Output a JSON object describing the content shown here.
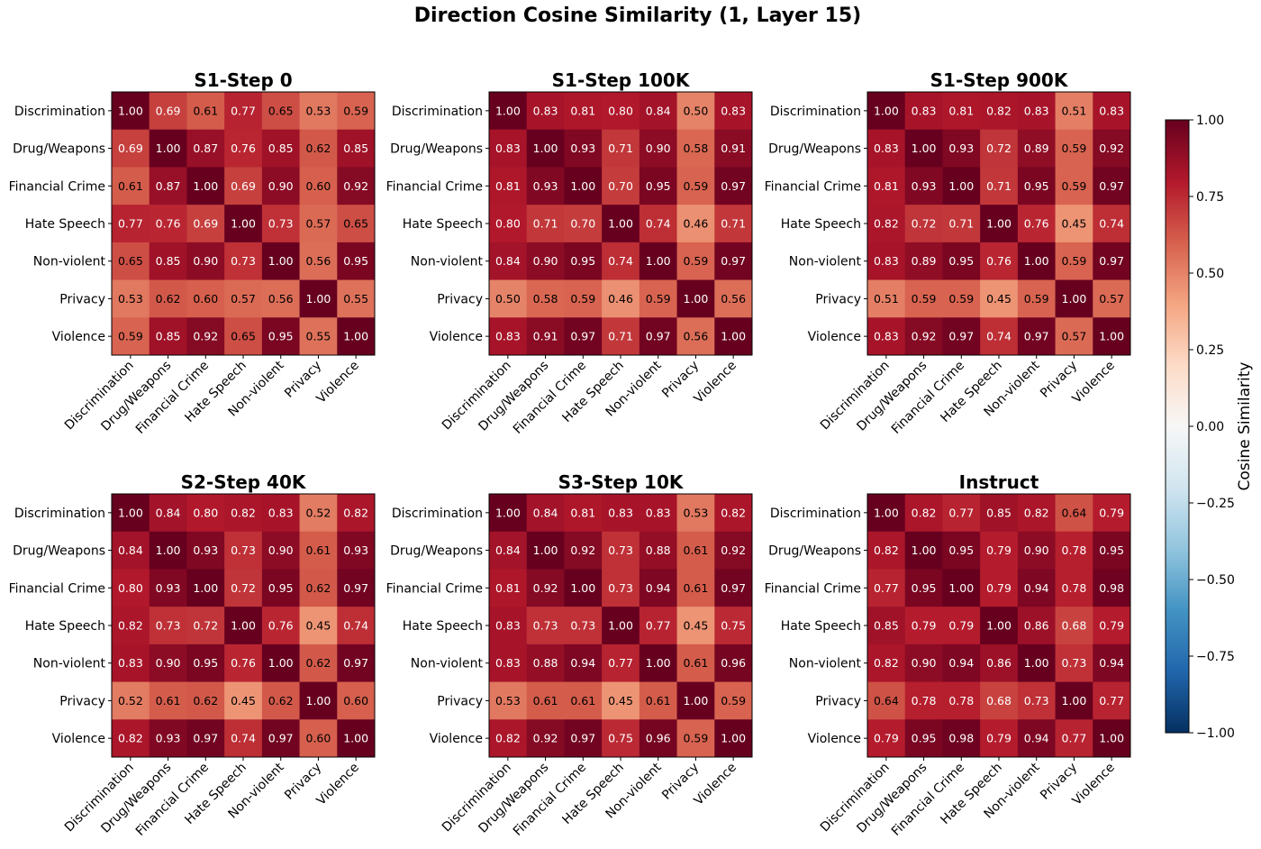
{
  "chart_data": {
    "type": "heatmap",
    "title": "Direction Cosine Similarity (1, Layer 15)",
    "categories": [
      "Discrimination",
      "Drug/Weapons",
      "Financial Crime",
      "Hate Speech",
      "Non-violent",
      "Privacy",
      "Violence"
    ],
    "vmin": -1.0,
    "vmax": 1.0,
    "colormap": "RdBu_r",
    "colorbar": {
      "label": "Cosine Similarity",
      "ticks": [
        "1.00",
        "0.75",
        "0.50",
        "0.25",
        "0.00",
        "−0.25",
        "−0.50",
        "−0.75",
        "−1.00"
      ]
    },
    "panels": [
      {
        "title": "S1-Step 0",
        "matrix": [
          [
            1.0,
            0.69,
            0.61,
            0.77,
            0.65,
            0.53,
            0.59
          ],
          [
            0.69,
            1.0,
            0.87,
            0.76,
            0.85,
            0.62,
            0.85
          ],
          [
            0.61,
            0.87,
            1.0,
            0.69,
            0.9,
            0.6,
            0.92
          ],
          [
            0.77,
            0.76,
            0.69,
            1.0,
            0.73,
            0.57,
            0.65
          ],
          [
            0.65,
            0.85,
            0.9,
            0.73,
            1.0,
            0.56,
            0.95
          ],
          [
            0.53,
            0.62,
            0.6,
            0.57,
            0.56,
            1.0,
            0.55
          ],
          [
            0.59,
            0.85,
            0.92,
            0.65,
            0.95,
            0.55,
            1.0
          ]
        ]
      },
      {
        "title": "S1-Step 100K",
        "matrix": [
          [
            1.0,
            0.83,
            0.81,
            0.8,
            0.84,
            0.5,
            0.83
          ],
          [
            0.83,
            1.0,
            0.93,
            0.71,
            0.9,
            0.58,
            0.91
          ],
          [
            0.81,
            0.93,
            1.0,
            0.7,
            0.95,
            0.59,
            0.97
          ],
          [
            0.8,
            0.71,
            0.7,
            1.0,
            0.74,
            0.46,
            0.71
          ],
          [
            0.84,
            0.9,
            0.95,
            0.74,
            1.0,
            0.59,
            0.97
          ],
          [
            0.5,
            0.58,
            0.59,
            0.46,
            0.59,
            1.0,
            0.56
          ],
          [
            0.83,
            0.91,
            0.97,
            0.71,
            0.97,
            0.56,
            1.0
          ]
        ]
      },
      {
        "title": "S1-Step 900K",
        "matrix": [
          [
            1.0,
            0.83,
            0.81,
            0.82,
            0.83,
            0.51,
            0.83
          ],
          [
            0.83,
            1.0,
            0.93,
            0.72,
            0.89,
            0.59,
            0.92
          ],
          [
            0.81,
            0.93,
            1.0,
            0.71,
            0.95,
            0.59,
            0.97
          ],
          [
            0.82,
            0.72,
            0.71,
            1.0,
            0.76,
            0.45,
            0.74
          ],
          [
            0.83,
            0.89,
            0.95,
            0.76,
            1.0,
            0.59,
            0.97
          ],
          [
            0.51,
            0.59,
            0.59,
            0.45,
            0.59,
            1.0,
            0.57
          ],
          [
            0.83,
            0.92,
            0.97,
            0.74,
            0.97,
            0.57,
            1.0
          ]
        ]
      },
      {
        "title": "S2-Step 40K",
        "matrix": [
          [
            1.0,
            0.84,
            0.8,
            0.82,
            0.83,
            0.52,
            0.82
          ],
          [
            0.84,
            1.0,
            0.93,
            0.73,
            0.9,
            0.61,
            0.93
          ],
          [
            0.8,
            0.93,
            1.0,
            0.72,
            0.95,
            0.62,
            0.97
          ],
          [
            0.82,
            0.73,
            0.72,
            1.0,
            0.76,
            0.45,
            0.74
          ],
          [
            0.83,
            0.9,
            0.95,
            0.76,
            1.0,
            0.62,
            0.97
          ],
          [
            0.52,
            0.61,
            0.62,
            0.45,
            0.62,
            1.0,
            0.6
          ],
          [
            0.82,
            0.93,
            0.97,
            0.74,
            0.97,
            0.6,
            1.0
          ]
        ]
      },
      {
        "title": "S3-Step 10K",
        "matrix": [
          [
            1.0,
            0.84,
            0.81,
            0.83,
            0.83,
            0.53,
            0.82
          ],
          [
            0.84,
            1.0,
            0.92,
            0.73,
            0.88,
            0.61,
            0.92
          ],
          [
            0.81,
            0.92,
            1.0,
            0.73,
            0.94,
            0.61,
            0.97
          ],
          [
            0.83,
            0.73,
            0.73,
            1.0,
            0.77,
            0.45,
            0.75
          ],
          [
            0.83,
            0.88,
            0.94,
            0.77,
            1.0,
            0.61,
            0.96
          ],
          [
            0.53,
            0.61,
            0.61,
            0.45,
            0.61,
            1.0,
            0.59
          ],
          [
            0.82,
            0.92,
            0.97,
            0.75,
            0.96,
            0.59,
            1.0
          ]
        ]
      },
      {
        "title": "Instruct",
        "matrix": [
          [
            1.0,
            0.82,
            0.77,
            0.85,
            0.82,
            0.64,
            0.79
          ],
          [
            0.82,
            1.0,
            0.95,
            0.79,
            0.9,
            0.78,
            0.95
          ],
          [
            0.77,
            0.95,
            1.0,
            0.79,
            0.94,
            0.78,
            0.98
          ],
          [
            0.85,
            0.79,
            0.79,
            1.0,
            0.86,
            0.68,
            0.79
          ],
          [
            0.82,
            0.9,
            0.94,
            0.86,
            1.0,
            0.73,
            0.94
          ],
          [
            0.64,
            0.78,
            0.78,
            0.68,
            0.73,
            1.0,
            0.77
          ],
          [
            0.79,
            0.95,
            0.98,
            0.79,
            0.94,
            0.77,
            1.0
          ]
        ]
      }
    ]
  }
}
